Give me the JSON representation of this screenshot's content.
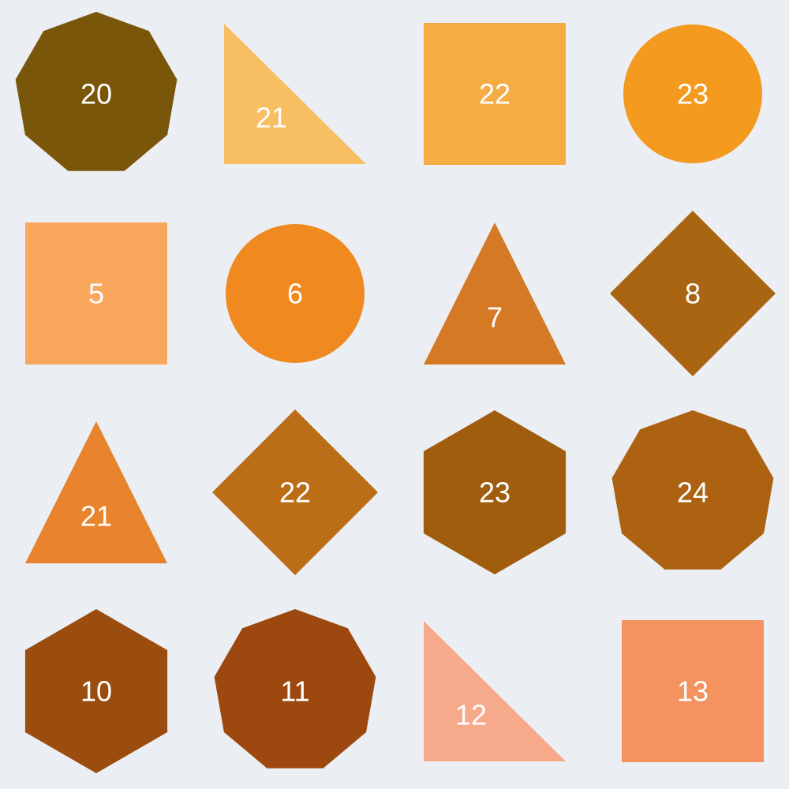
{
  "background_color": "#ebeef3",
  "label_text_color": "#ffffff",
  "grid": {
    "rows": 4,
    "cols": 4
  },
  "shapes": [
    {
      "label": "20",
      "shape": "nonagon",
      "color": "#7a560a"
    },
    {
      "label": "21",
      "shape": "right-triangle",
      "color": "#f8be62"
    },
    {
      "label": "22",
      "shape": "square",
      "color": "#f6ac45"
    },
    {
      "label": "23",
      "shape": "circle",
      "color": "#f39a1f"
    },
    {
      "label": "5",
      "shape": "square",
      "color": "#f9a75c"
    },
    {
      "label": "6",
      "shape": "circle",
      "color": "#f08a20"
    },
    {
      "label": "7",
      "shape": "triangle",
      "color": "#d67925"
    },
    {
      "label": "8",
      "shape": "diamond",
      "color": "#aa6513"
    },
    {
      "label": "21",
      "shape": "triangle",
      "color": "#e8832e"
    },
    {
      "label": "22",
      "shape": "diamond",
      "color": "#bb6e16"
    },
    {
      "label": "23",
      "shape": "hexagon",
      "color": "#a15d0e"
    },
    {
      "label": "24",
      "shape": "nonagon",
      "color": "#ac6211"
    },
    {
      "label": "10",
      "shape": "hexagon",
      "color": "#9a4d0f"
    },
    {
      "label": "11",
      "shape": "nonagon",
      "color": "#9c480e"
    },
    {
      "label": "12",
      "shape": "right-triangle",
      "color": "#f7a98c"
    },
    {
      "label": "13",
      "shape": "square",
      "color": "#f4935f"
    }
  ]
}
